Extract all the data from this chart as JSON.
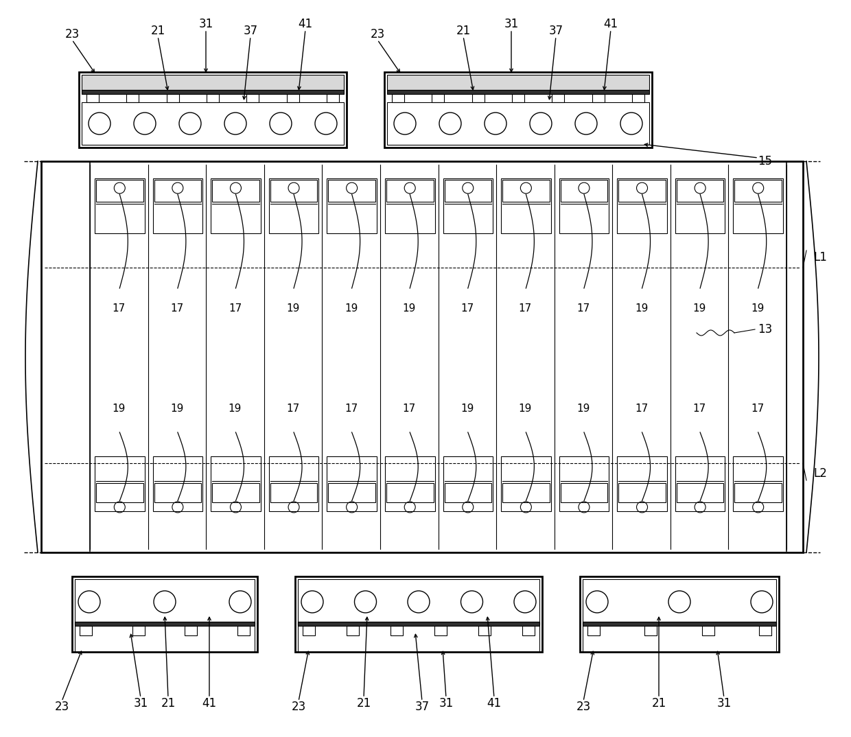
{
  "bg_color": "#ffffff",
  "line_color": "#000000",
  "figsize": [
    12.4,
    10.74
  ],
  "dpi": 100,
  "top_labels_left": [
    "23",
    "21",
    "31",
    "37",
    "41"
  ],
  "top_labels_right": [
    "23",
    "21",
    "31",
    "37",
    "41"
  ],
  "cell_top_labels": [
    17,
    17,
    17,
    19,
    19,
    19,
    17,
    17,
    17,
    19,
    19,
    19
  ],
  "cell_bot_labels": [
    19,
    19,
    19,
    17,
    17,
    17,
    19,
    19,
    19,
    17,
    17,
    17
  ],
  "bottom_left_labels": [
    "23",
    "31",
    "21",
    "41"
  ],
  "bottom_mid_labels": [
    "23",
    "21",
    "37",
    "31",
    "41"
  ],
  "bottom_right_labels": [
    "23",
    "21",
    "31"
  ]
}
